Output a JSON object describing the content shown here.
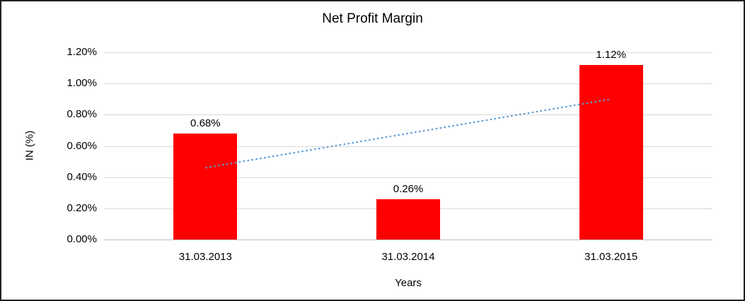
{
  "chart_data": {
    "type": "bar",
    "title": "Net Profit Margin",
    "categories": [
      "31.03.2013",
      "31.03.2014",
      "31.03.2015"
    ],
    "values": [
      0.68,
      0.26,
      1.12
    ],
    "value_labels": [
      "0.68%",
      "0.26%",
      "1.12%"
    ],
    "xlabel": "Years",
    "ylabel": "IN (%)",
    "ylim": [
      0,
      1.2
    ],
    "ytick_step": 0.2,
    "ytick_labels": [
      "0.00%",
      "0.20%",
      "0.40%",
      "0.60%",
      "0.80%",
      "1.00%",
      "1.20%"
    ],
    "bar_color": "#ff0000",
    "grid": true,
    "gridline_color": "#d9d9d9",
    "legend": "none",
    "trendline": {
      "style": "dotted",
      "color": "#5b9bd5",
      "start_value": 0.46,
      "end_value": 0.9
    }
  }
}
